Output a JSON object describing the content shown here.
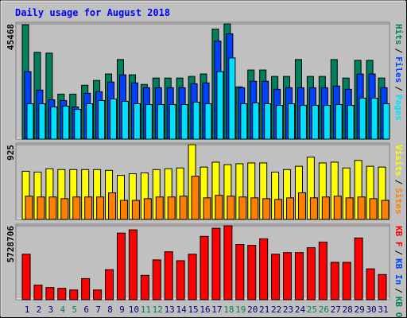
{
  "title": "Daily usage for August 2018",
  "legend_separator": "/",
  "chart_data": [
    {
      "type": "bar",
      "ylim": [
        0,
        45468
      ],
      "yticks": [
        45468
      ],
      "series": [
        {
          "name": "Hits",
          "color": "#00805c",
          "values": [
            45100,
            34240,
            33920,
            17750,
            17750,
            21240,
            23140,
            25680,
            31380,
            25360,
            21560,
            24090,
            24090,
            24090,
            24730,
            25680,
            43430,
            45468,
            20610,
            27260,
            27260,
            24730,
            24730,
            31380,
            24730,
            24730,
            31380,
            24090,
            31070,
            31070,
            24090
          ]
        },
        {
          "name": "Files",
          "color": "#0040ff",
          "values": [
            26630,
            19340,
            15530,
            15220,
            12680,
            18070,
            18700,
            22510,
            25360,
            22190,
            20290,
            20290,
            20290,
            20290,
            21870,
            22190,
            38670,
            41530,
            20290,
            22820,
            22820,
            19650,
            20290,
            20290,
            20290,
            20290,
            20920,
            19650,
            25680,
            25680,
            20290
          ]
        },
        {
          "name": "Pages",
          "color": "#00e0ff",
          "values": [
            13950,
            13950,
            12680,
            13000,
            11730,
            13950,
            15220,
            15850,
            14900,
            13950,
            13630,
            13630,
            13630,
            13630,
            14580,
            13950,
            26630,
            32020,
            13950,
            14270,
            13950,
            13310,
            13950,
            13310,
            13310,
            13310,
            13630,
            13310,
            16170,
            16170,
            13950
          ]
        }
      ]
    },
    {
      "type": "bar",
      "ylim": [
        0,
        925
      ],
      "yticks": [
        925
      ],
      "series": [
        {
          "name": "Visits",
          "color": "#ffff00",
          "values": [
            596,
            586,
            627,
            617,
            617,
            617,
            617,
            607,
            545,
            565,
            576,
            617,
            627,
            637,
            925,
            648,
            709,
            678,
            689,
            699,
            699,
            586,
            617,
            658,
            771,
            699,
            709,
            637,
            730,
            658,
            648
          ]
        },
        {
          "name": "Sites",
          "color": "#ff8000",
          "values": [
            288,
            278,
            278,
            257,
            278,
            278,
            278,
            329,
            236,
            236,
            257,
            278,
            278,
            288,
            535,
            267,
            298,
            288,
            278,
            267,
            257,
            247,
            267,
            329,
            267,
            278,
            288,
            267,
            278,
            257,
            236
          ]
        }
      ]
    },
    {
      "type": "bar",
      "ylim": [
        0,
        5728706
      ],
      "yticks": [
        5728706
      ],
      "categories": [
        "1",
        "2",
        "3",
        "4",
        "5",
        "6",
        "7",
        "8",
        "9",
        "10",
        "11",
        "12",
        "13",
        "14",
        "15",
        "16",
        "17",
        "18",
        "19",
        "20",
        "21",
        "22",
        "23",
        "24",
        "25",
        "26",
        "27",
        "28",
        "29",
        "30",
        "31"
      ],
      "category_colors": [
        "#000080",
        "#000080",
        "#000080",
        "#00805c",
        "#00805c",
        "#000080",
        "#000080",
        "#000080",
        "#000080",
        "#000080",
        "#00805c",
        "#00805c",
        "#000080",
        "#000080",
        "#000080",
        "#000080",
        "#000080",
        "#00805c",
        "#00805c",
        "#000080",
        "#000080",
        "#000080",
        "#000080",
        "#000080",
        "#00805c",
        "#00805c",
        "#000080",
        "#000080",
        "#000080",
        "#000080",
        "#000080"
      ],
      "series": [
        {
          "name": "KB F",
          "color": "#ff0000",
          "values": [
            3525000,
            1133000,
            944000,
            881000,
            755000,
            1637000,
            755000,
            2329000,
            5162000,
            5414000,
            1889000,
            3085000,
            3714000,
            3022000,
            3525000,
            4910000,
            5540000,
            5728706,
            4281000,
            4218000,
            4721000,
            3525000,
            3651000,
            3651000,
            4029000,
            4469000,
            2896000,
            2896000,
            4784000,
            2392000,
            1951000
          ]
        },
        {
          "name": "KB In",
          "color": "#0040ff"
        },
        {
          "name": "KB Out",
          "color": "#00805c"
        }
      ]
    }
  ]
}
